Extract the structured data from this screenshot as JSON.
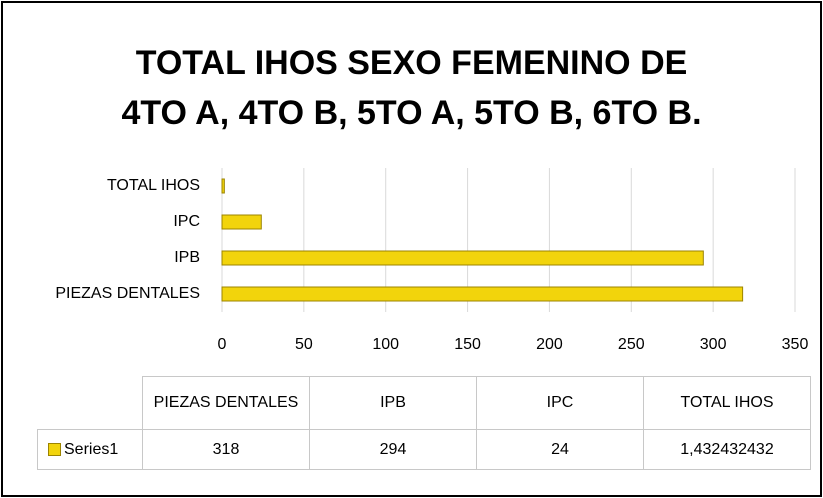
{
  "chart_data": {
    "type": "bar",
    "orientation": "horizontal",
    "title": "TOTAL IHOS SEXO FEMENINO DE\n4TO A, 4TO B, 5TO A, 5TO B, 6TO B.",
    "categories": [
      "PIEZAS DENTALES",
      "IPB",
      "IPC",
      "TOTAL IHOS"
    ],
    "series": [
      {
        "name": "Series1",
        "color": "#f2d40c",
        "values": [
          318,
          294,
          24,
          1.432432432
        ],
        "value_labels": [
          "318",
          "294",
          "24",
          "1,432432432"
        ]
      }
    ],
    "xlim": [
      0,
      350
    ],
    "xticks": [
      0,
      50,
      100,
      150,
      200,
      250,
      300,
      350
    ],
    "grid": true
  }
}
